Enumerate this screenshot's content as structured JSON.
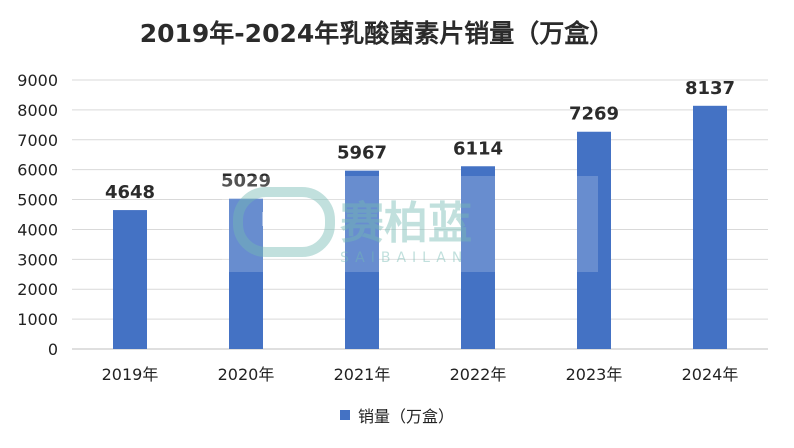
{
  "chart_data": {
    "type": "bar",
    "title": "2019年-2024年乳酸菌素片销量（万盒）",
    "categories": [
      "2019年",
      "2020年",
      "2021年",
      "2022年",
      "2023年",
      "2024年"
    ],
    "series": [
      {
        "name": "销量（万盒）",
        "values": [
          4648,
          5029,
          5967,
          6114,
          7269,
          8137
        ],
        "color": "#4472c4"
      }
    ],
    "ylim": [
      0,
      9000
    ],
    "yticks": [
      0,
      1000,
      2000,
      3000,
      4000,
      5000,
      6000,
      7000,
      8000,
      9000
    ],
    "grid": true,
    "legend": "bottom",
    "data_labels": true,
    "watermark": {
      "text": "赛柏蓝",
      "subtext": "SAIBAILAN"
    }
  }
}
